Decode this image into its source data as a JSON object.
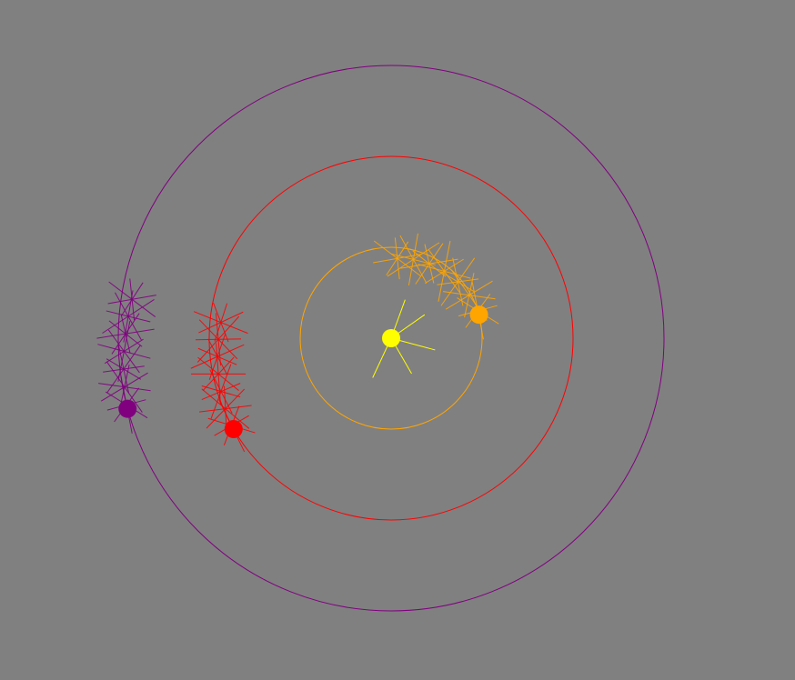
{
  "scene": {
    "background": "#808080",
    "center": {
      "color": "#ffff00",
      "name": "sun"
    },
    "bodies": [
      {
        "id": "orange",
        "color": "#ffa500",
        "phase_deg": -15,
        "orbit_ratio": 1.0
      },
      {
        "id": "red",
        "color": "#ff0000",
        "phase_deg": 150,
        "orbit_ratio": 2.0
      },
      {
        "id": "purple",
        "color": "#800080",
        "phase_deg": 165,
        "orbit_ratio": 3.0
      }
    ]
  }
}
